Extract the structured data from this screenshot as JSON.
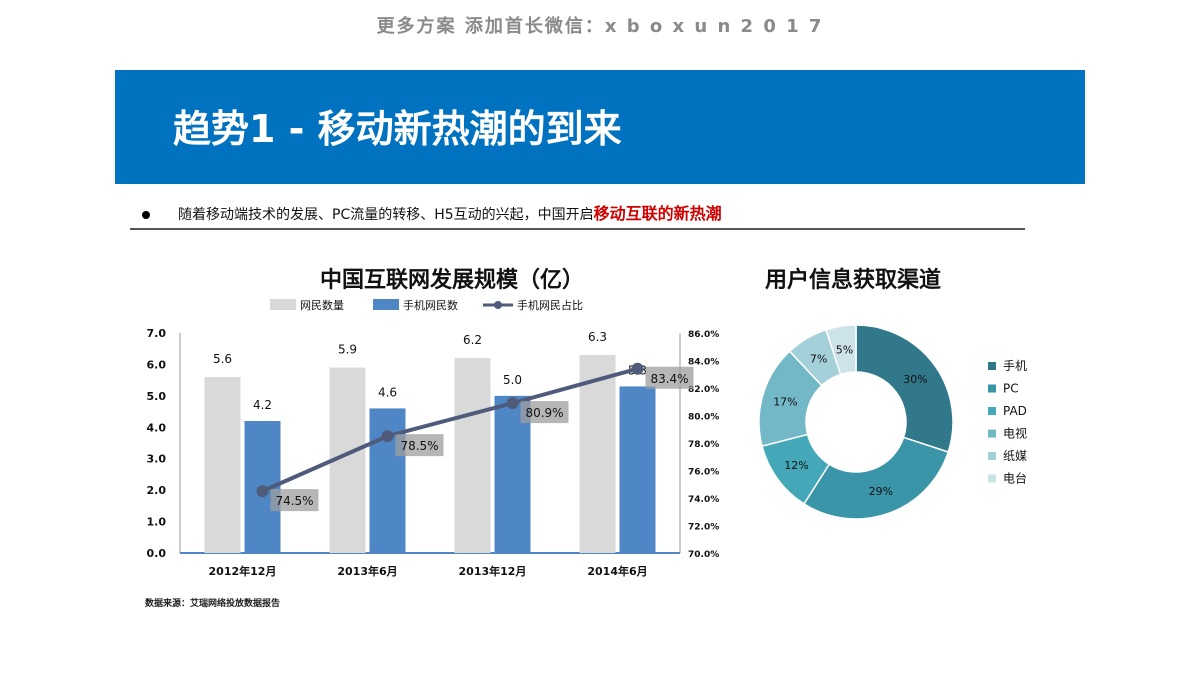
{
  "top_note": "更多方案 添加首长微信：x b o x  u n 2 0 1 7",
  "banner": {
    "title": "趋势1 - 移动新热潮的到来"
  },
  "bullet": {
    "text": "随着移动端技术的发展、PC流量的转移、H5互动的兴起，中国开启",
    "highlight": "移动互联的新热潮"
  },
  "colors": {
    "banner": "#0072c0",
    "highlight": "#d00000",
    "bar_total": "#d9d9d9",
    "bar_mobile": "#4f86c6",
    "line": "#4f5b7a"
  },
  "source_note": "数据来源：艾瑞网络投放数据报告",
  "chart_data": [
    {
      "type": "bar",
      "title": "中国互联网发展规模（亿）",
      "categories": [
        "2012年12月",
        "2013年6月",
        "2013年12月",
        "2014年6月"
      ],
      "series": [
        {
          "name": "网民数量",
          "type": "bar",
          "values": [
            5.6,
            5.9,
            6.2,
            6.3
          ]
        },
        {
          "name": "手机网民数",
          "type": "bar",
          "values": [
            4.2,
            4.6,
            5.0,
            5.3
          ]
        },
        {
          "name": "手机网民占比",
          "type": "line",
          "axis": "right",
          "values": [
            74.5,
            78.5,
            80.9,
            83.4
          ],
          "labels": [
            "74.5%",
            "78.5%",
            "80.9%",
            "83.4%"
          ]
        }
      ],
      "left_axis": {
        "ylim": [
          0,
          7
        ],
        "ticks": [
          "0.0",
          "1.0",
          "2.0",
          "3.0",
          "4.0",
          "5.0",
          "6.0",
          "7.0"
        ]
      },
      "right_axis": {
        "ylim": [
          70,
          86
        ],
        "ticks": [
          "70.0%",
          "72.0%",
          "74.0%",
          "76.0%",
          "78.0%",
          "80.0%",
          "82.0%",
          "84.0%",
          "86.0%"
        ]
      },
      "legend": "top"
    },
    {
      "type": "pie",
      "title": "用户信息获取渠道",
      "labels": [
        "手机",
        "PC",
        "PAD",
        "电视",
        "纸媒",
        "电台"
      ],
      "values": [
        30,
        29,
        12,
        17,
        7,
        5
      ],
      "value_labels": [
        "30%",
        "29%",
        "12%",
        "17%",
        "7%",
        "5%"
      ],
      "colors": [
        "#31798a",
        "#3a95a8",
        "#45a8b8",
        "#72b8c6",
        "#a4d0da",
        "#cde3ea"
      ],
      "legend": "right"
    }
  ]
}
